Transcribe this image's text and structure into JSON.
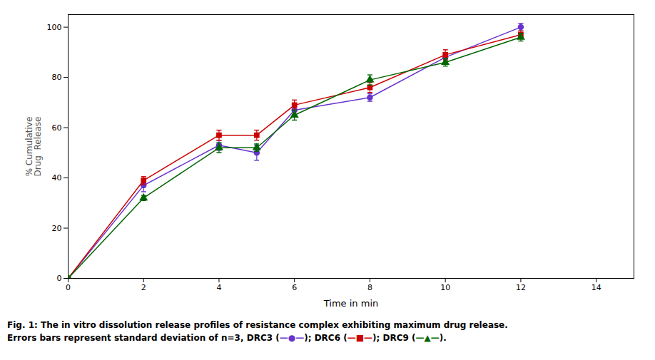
{
  "chart_data": {
    "type": "line",
    "xlabel": "Time in min",
    "ylabel": "% Cumulative\nDrug  Release",
    "caption": [
      "Fig. 1: The in vitro dissolution release profiles of resistance complex exhibiting maximum drug release.",
      "Errors bars represent standard deviation of n=3, DRC3 (—●—); DRC6 (—■—); DRC9 (—▲—)."
    ],
    "x": [
      0,
      2,
      4,
      5,
      6,
      8,
      10,
      12
    ],
    "series": [
      {
        "name": "DRC3",
        "color": "#6633cc",
        "marker": "circle",
        "values": [
          0,
          37,
          53,
          50,
          67,
          72,
          88,
          100
        ],
        "errors": [
          0,
          2.5,
          2,
          3,
          2,
          1.5,
          1.5,
          1.5
        ]
      },
      {
        "name": "DRC6",
        "color": "#cc0000",
        "marker": "square",
        "values": [
          0,
          39,
          57,
          57,
          69,
          76,
          89,
          97
        ],
        "errors": [
          0,
          1.5,
          2,
          2,
          2,
          2,
          2,
          1.5
        ]
      },
      {
        "name": "DRC9",
        "color": "#006600",
        "marker": "triangle",
        "values": [
          0,
          32,
          52,
          52,
          65,
          79,
          86,
          96
        ],
        "errors": [
          0,
          1,
          2,
          1.5,
          2,
          2,
          1.5,
          1.5
        ]
      }
    ],
    "xlim": [
      0,
      15
    ],
    "ylim": [
      0,
      105
    ],
    "xticks": [
      0,
      2,
      4,
      6,
      8,
      10,
      12,
      14
    ],
    "yticks": [
      0,
      20,
      40,
      60,
      80,
      100
    ],
    "grid": false
  }
}
